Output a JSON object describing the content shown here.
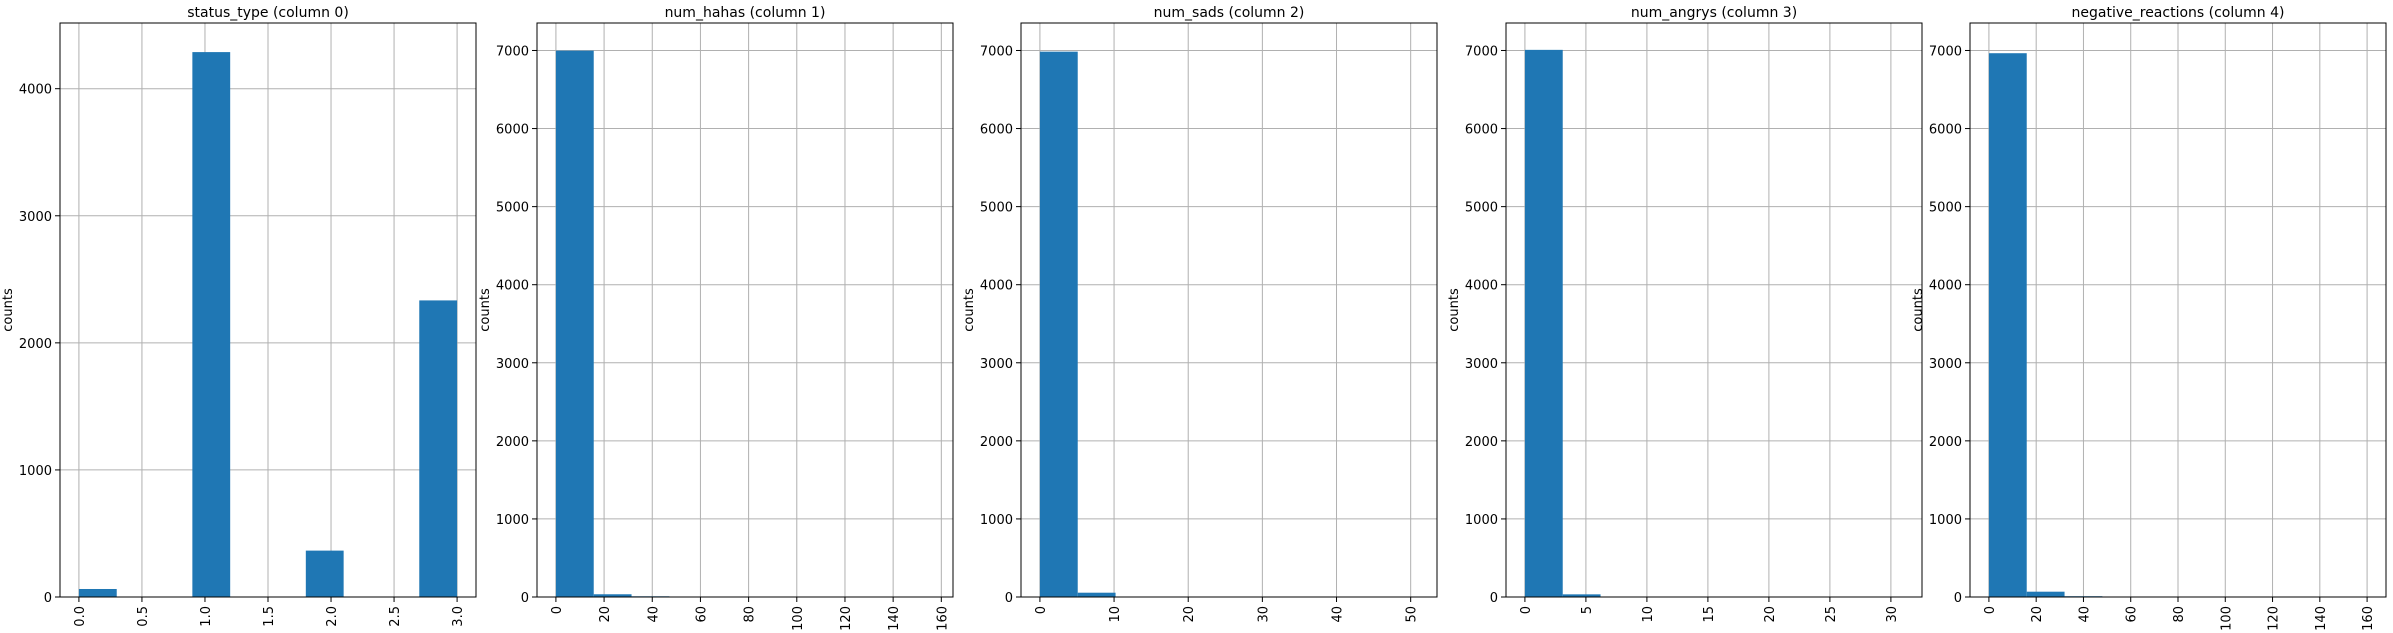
{
  "chart_data": [
    {
      "type": "histogram",
      "title": "status_type (column 0)",
      "ylabel": "counts",
      "color": "#1f77b4",
      "grid": true,
      "bins": [
        0,
        0.3,
        0.6,
        0.9,
        1.2,
        1.5,
        1.8,
        2.1,
        2.4,
        2.7,
        3.0
      ],
      "counts": [
        63,
        0,
        0,
        4288,
        0,
        0,
        365,
        0,
        0,
        2334
      ],
      "xlim": [
        -0.15,
        3.15
      ],
      "ylim": [
        0,
        4517
      ],
      "xticks": [
        {
          "value": 0,
          "label": "0.0"
        },
        {
          "value": 0.5,
          "label": "0.5"
        },
        {
          "value": 1,
          "label": "1.0"
        },
        {
          "value": 1.5,
          "label": "1.5"
        },
        {
          "value": 2,
          "label": "2.0"
        },
        {
          "value": 2.5,
          "label": "2.5"
        },
        {
          "value": 3,
          "label": "3.0"
        }
      ],
      "yticks": [
        0,
        1000,
        2000,
        3000,
        4000
      ]
    },
    {
      "type": "histogram",
      "title": "num_hahas (column 1)",
      "ylabel": "counts",
      "color": "#1f77b4",
      "grid": true,
      "bins": [
        0,
        15.7,
        31.4,
        47.1,
        62.8,
        78.5,
        94.2,
        109.9,
        125.6,
        141.3,
        157
      ],
      "counts": [
        6998,
        35,
        9,
        3,
        2,
        1,
        0,
        1,
        0,
        1
      ],
      "xlim": [
        -7.85,
        164.85
      ],
      "ylim": [
        0,
        7352
      ],
      "xticks": [
        0,
        20,
        40,
        60,
        80,
        100,
        120,
        140,
        160
      ],
      "yticks": [
        0,
        1000,
        2000,
        3000,
        4000,
        5000,
        6000,
        7000
      ]
    },
    {
      "type": "histogram",
      "title": "num_sads (column 2)",
      "ylabel": "counts",
      "color": "#1f77b4",
      "grid": true,
      "bins": [
        0,
        5.1,
        10.2,
        15.3,
        20.4,
        25.5,
        30.6,
        35.7,
        40.8,
        45.9,
        51
      ],
      "counts": [
        6985,
        55,
        6,
        2,
        1,
        0,
        0,
        0,
        0,
        1
      ],
      "xlim": [
        -2.55,
        53.55
      ],
      "ylim": [
        0,
        7352
      ],
      "xticks": [
        0,
        10,
        20,
        30,
        40,
        50
      ],
      "yticks": [
        0,
        1000,
        2000,
        3000,
        4000,
        5000,
        6000,
        7000
      ]
    },
    {
      "type": "histogram",
      "title": "num_angrys (column 3)",
      "ylabel": "counts",
      "color": "#1f77b4",
      "grid": true,
      "bins": [
        0,
        3.1,
        6.2,
        9.3,
        12.4,
        15.5,
        18.6,
        21.7,
        24.8,
        27.9,
        31
      ],
      "counts": [
        7008,
        34,
        5,
        1,
        0,
        1,
        0,
        0,
        0,
        1
      ],
      "xlim": [
        -1.55,
        32.55
      ],
      "ylim": [
        0,
        7352
      ],
      "xticks": [
        0,
        5,
        10,
        15,
        20,
        25,
        30
      ],
      "yticks": [
        0,
        1000,
        2000,
        3000,
        4000,
        5000,
        6000,
        7000
      ]
    },
    {
      "type": "histogram",
      "title": "negative_reactions (column 4)",
      "ylabel": "counts",
      "color": "#1f77b4",
      "grid": true,
      "bins": [
        0,
        16,
        32,
        48,
        64,
        80,
        96,
        112,
        128,
        144,
        160
      ],
      "counts": [
        6965,
        68,
        10,
        3,
        1,
        1,
        0,
        1,
        0,
        1
      ],
      "xlim": [
        -8,
        168
      ],
      "ylim": [
        0,
        7352
      ],
      "xticks": [
        0,
        20,
        40,
        60,
        80,
        100,
        120,
        140,
        160
      ],
      "yticks": [
        0,
        1000,
        2000,
        3000,
        4000,
        5000,
        6000,
        7000
      ]
    }
  ]
}
